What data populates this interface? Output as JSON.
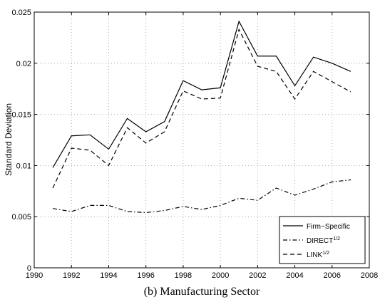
{
  "chart_data": {
    "type": "line",
    "caption": "(b) Manufacturing Sector",
    "y_label": "Standard Deviation",
    "x": [
      1991,
      1992,
      1993,
      1994,
      1995,
      1996,
      1997,
      1998,
      1999,
      2000,
      2001,
      2002,
      2003,
      2004,
      2005,
      2006,
      2007
    ],
    "series": [
      {
        "name": "Firm−Specific",
        "color": "#000000",
        "dash": "solid",
        "values": [
          0.0098,
          0.0129,
          0.013,
          0.0116,
          0.0146,
          0.0133,
          0.0143,
          0.0183,
          0.0174,
          0.0176,
          0.0241,
          0.0207,
          0.0207,
          0.0178,
          0.0206,
          0.02,
          0.0192
        ]
      },
      {
        "name": "DIRECT",
        "name_superscript": "1/2",
        "color": "#000000",
        "dash": "dashdot",
        "values": [
          0.0058,
          0.0055,
          0.0061,
          0.0061,
          0.0055,
          0.0054,
          0.0056,
          0.006,
          0.0057,
          0.0061,
          0.0068,
          0.0066,
          0.0078,
          0.0071,
          0.0077,
          0.0084,
          0.0086
        ]
      },
      {
        "name": "LINK",
        "name_superscript": "1/2",
        "color": "#000000",
        "dash": "dashed",
        "values": [
          0.0078,
          0.0117,
          0.0115,
          0.01,
          0.0137,
          0.0122,
          0.0133,
          0.0173,
          0.0165,
          0.0166,
          0.0233,
          0.0197,
          0.0192,
          0.0165,
          0.0192,
          0.0182,
          0.0172
        ]
      }
    ],
    "xlim": [
      1990,
      2008
    ],
    "xticks": [
      1990,
      1992,
      1994,
      1996,
      1998,
      2000,
      2002,
      2004,
      2006,
      2008
    ],
    "ylim": [
      0,
      0.025
    ],
    "yticks": [
      0,
      0.005,
      0.01,
      0.015,
      0.02,
      0.025
    ],
    "grid": true,
    "legend": "lower right"
  }
}
